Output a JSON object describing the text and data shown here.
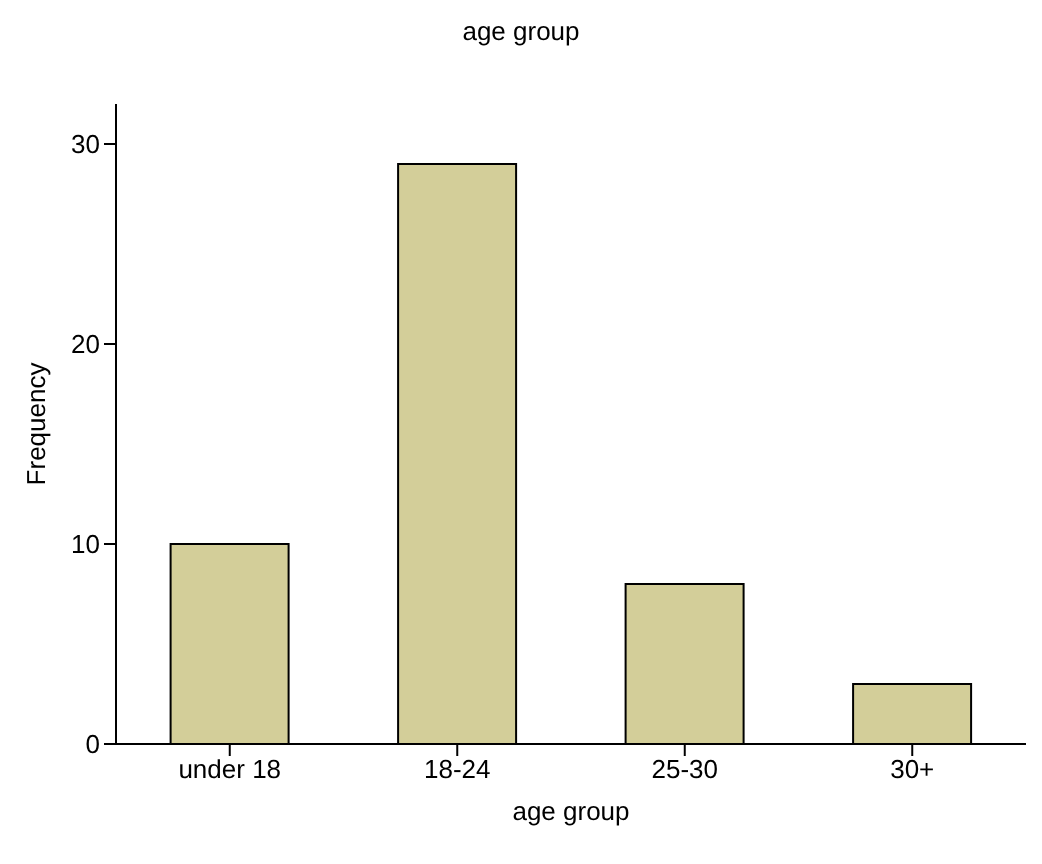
{
  "chart_data": {
    "type": "bar",
    "title": "age group",
    "xlabel": "age group",
    "ylabel": "Frequency",
    "categories": [
      "under 18",
      "18-24",
      "25-30",
      "30+"
    ],
    "values": [
      10,
      29,
      8,
      3
    ],
    "color": "#d3ce99",
    "ylim": [
      0,
      32
    ],
    "yticks": [
      0,
      10,
      20,
      30
    ],
    "grid": false,
    "legend": false
  }
}
